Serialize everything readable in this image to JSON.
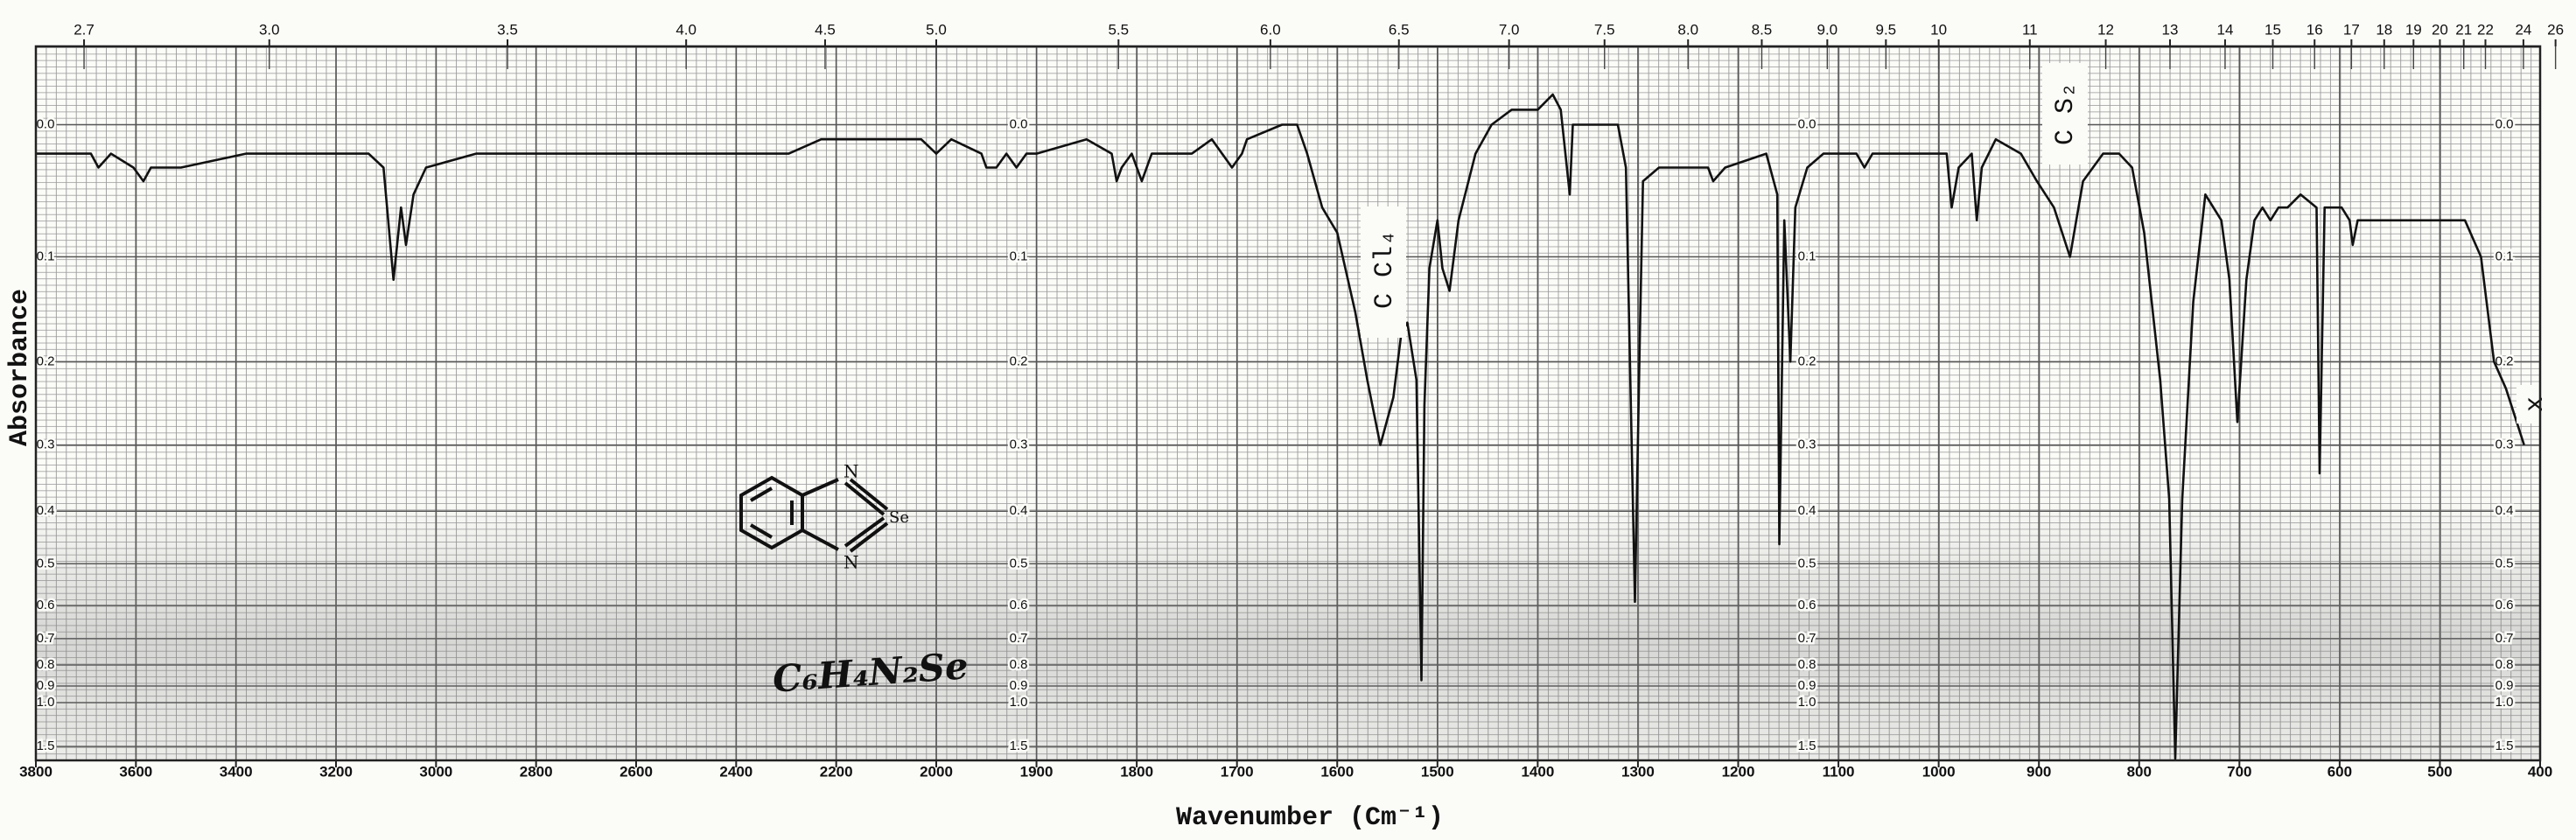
{
  "chart_data": {
    "type": "line",
    "x_label": "Wavenumber (Cm⁻¹)",
    "y_label": "Absorbance",
    "annotations": [
      "C Cl₄",
      "C S₂",
      "x",
      "C₆H₄N₂Se"
    ],
    "color": "#111111",
    "grid": true,
    "y_scale": "absorbance",
    "x_break": 2000,
    "xlim": [
      3800,
      400
    ],
    "ylim": [
      -0.05,
      2
    ],
    "xticks": [
      3800,
      3600,
      3400,
      3200,
      3000,
      2800,
      2600,
      2400,
      2200,
      2000,
      1900,
      1800,
      1700,
      1600,
      1500,
      1400,
      1300,
      1200,
      1100,
      1000,
      900,
      800,
      700,
      600,
      500,
      400
    ],
    "x2ticks": [
      2.7,
      {
        "value": 3,
        "label": "3.0"
      },
      3.5,
      {
        "value": 4,
        "label": "4.0"
      },
      4.5,
      {
        "value": 5,
        "label": "5.0"
      },
      5.5,
      {
        "value": 6,
        "label": "6.0"
      },
      6.5,
      {
        "value": 7,
        "label": "7.0"
      },
      7.5,
      {
        "value": 8,
        "label": "8.0"
      },
      8.5,
      {
        "value": 9,
        "label": "9.0"
      },
      9.5,
      10,
      11,
      12,
      13,
      14,
      15,
      16,
      17,
      18,
      19,
      20,
      21,
      22,
      24,
      26
    ],
    "yticks": [
      {
        "value": 0,
        "label": "0.0"
      },
      0.1,
      0.2,
      0.3,
      0.4,
      0.5,
      0.6,
      0.7,
      0.8,
      0.9,
      {
        "value": 1,
        "label": "1.0"
      },
      1.5
    ],
    "x": [
      3800,
      3690,
      3675,
      3650,
      3605,
      3585,
      3570,
      3510,
      3380,
      3135,
      3105,
      3085,
      3070,
      3060,
      3045,
      3020,
      2920,
      2720,
      2495,
      2395,
      2295,
      2230,
      2030,
      2000,
      1985,
      1955,
      1950,
      1940,
      1930,
      1920,
      1910,
      1900,
      1850,
      1825,
      1820,
      1815,
      1805,
      1795,
      1785,
      1755,
      1745,
      1725,
      1705,
      1695,
      1690,
      1655,
      1640,
      1630,
      1615,
      1600,
      1582,
      1570,
      1557,
      1544,
      1536,
      1530,
      1521,
      1516,
      1513,
      1508,
      1500,
      1495,
      1488,
      1479,
      1462,
      1446,
      1426,
      1400,
      1385,
      1377,
      1368,
      1365,
      1357,
      1336,
      1320,
      1312,
      1303,
      1298,
      1295,
      1279,
      1230,
      1225,
      1213,
      1172,
      1161,
      1159,
      1154,
      1148,
      1143,
      1131,
      1115,
      1082,
      1074,
      1066,
      1033,
      992,
      987,
      980,
      967,
      962,
      957,
      943,
      918,
      902,
      885,
      869,
      856,
      836,
      820,
      807,
      795,
      779,
      770,
      764,
      757,
      746,
      734,
      718,
      710,
      702,
      693,
      685,
      677,
      669,
      661,
      652,
      639,
      623,
      620,
      615,
      598,
      590,
      587,
      582,
      525,
      475,
      459,
      446,
      434,
      416
    ],
    "values": [
      0.02,
      0.02,
      0.03,
      0.02,
      0.03,
      0.04,
      0.03,
      0.03,
      0.02,
      0.02,
      0.03,
      0.12,
      0.06,
      0.09,
      0.05,
      0.03,
      0.02,
      0.02,
      0.02,
      0.02,
      0.02,
      0.01,
      0.01,
      0.02,
      0.01,
      0.02,
      0.03,
      0.03,
      0.02,
      0.03,
      0.02,
      0.02,
      0.01,
      0.02,
      0.04,
      0.03,
      0.02,
      0.04,
      0.02,
      0.02,
      0.02,
      0.01,
      0.03,
      0.02,
      0.01,
      0,
      0,
      0.02,
      0.06,
      0.08,
      0.15,
      0.22,
      0.3,
      0.24,
      0.17,
      0.16,
      0.22,
      0.87,
      0.25,
      0.11,
      0.07,
      0.11,
      0.13,
      0.07,
      0.02,
      0,
      -0.01,
      -0.01,
      -0.02,
      -0.01,
      0.05,
      0,
      0,
      0,
      0,
      0.03,
      0.59,
      0.17,
      0.04,
      0.03,
      0.03,
      0.04,
      0.03,
      0.02,
      0.05,
      0.46,
      0.07,
      0.2,
      0.06,
      0.03,
      0.02,
      0.02,
      0.03,
      0.02,
      0.02,
      0.02,
      0.06,
      0.03,
      0.02,
      0.07,
      0.03,
      0.01,
      0.02,
      0.04,
      0.06,
      0.1,
      0.04,
      0.02,
      0.02,
      0.03,
      0.08,
      0.22,
      0.38,
      1.9,
      0.38,
      0.14,
      0.05,
      0.07,
      0.12,
      0.27,
      0.12,
      0.07,
      0.06,
      0.07,
      0.06,
      0.06,
      0.05,
      0.06,
      0.34,
      0.06,
      0.06,
      0.07,
      0.09,
      0.07,
      0.07,
      0.07,
      0.1,
      0.2,
      0.23,
      0.3
    ]
  }
}
